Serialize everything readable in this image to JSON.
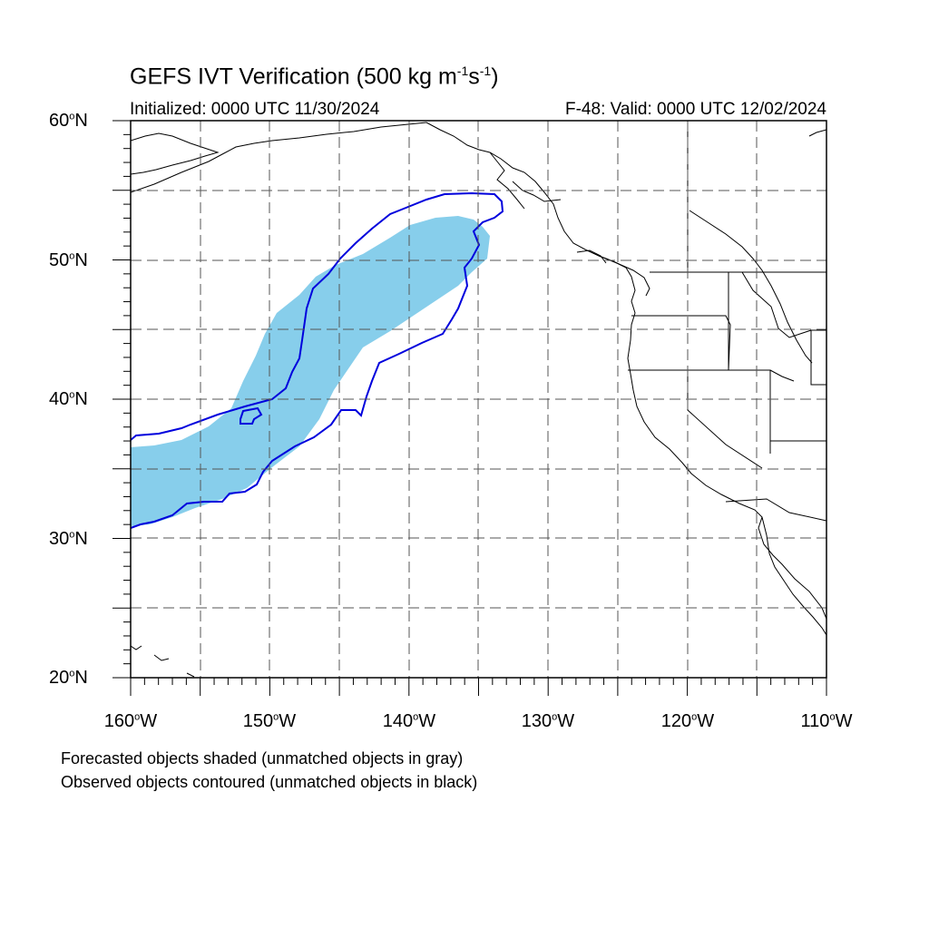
{
  "title": {
    "prefix": "GEFS IVT Verification (500 kg m",
    "exp1": "-1",
    "mid": "s",
    "exp2": "-1",
    "suffix": ")"
  },
  "initialized": "Initialized: 0000 UTC 11/30/2024",
  "valid": "F-48: Valid: 0000 UTC 12/02/2024",
  "lat_labels": [
    "60",
    "50",
    "40",
    "30",
    "20"
  ],
  "lon_labels": [
    "160",
    "150",
    "140",
    "130",
    "120",
    "110"
  ],
  "degree_symbol": "o",
  "lat_hemisphere": "N",
  "lon_hemisphere": "W",
  "footer": {
    "line1": "Forecasted objects shaded (unmatched objects in gray)",
    "line2": "Observed objects contoured (unmatched objects in black)"
  },
  "colors": {
    "forecast_fill": "#87ceeb",
    "observed_contour": "#0000dd",
    "coastline": "#000000",
    "grid": "#555555"
  }
}
